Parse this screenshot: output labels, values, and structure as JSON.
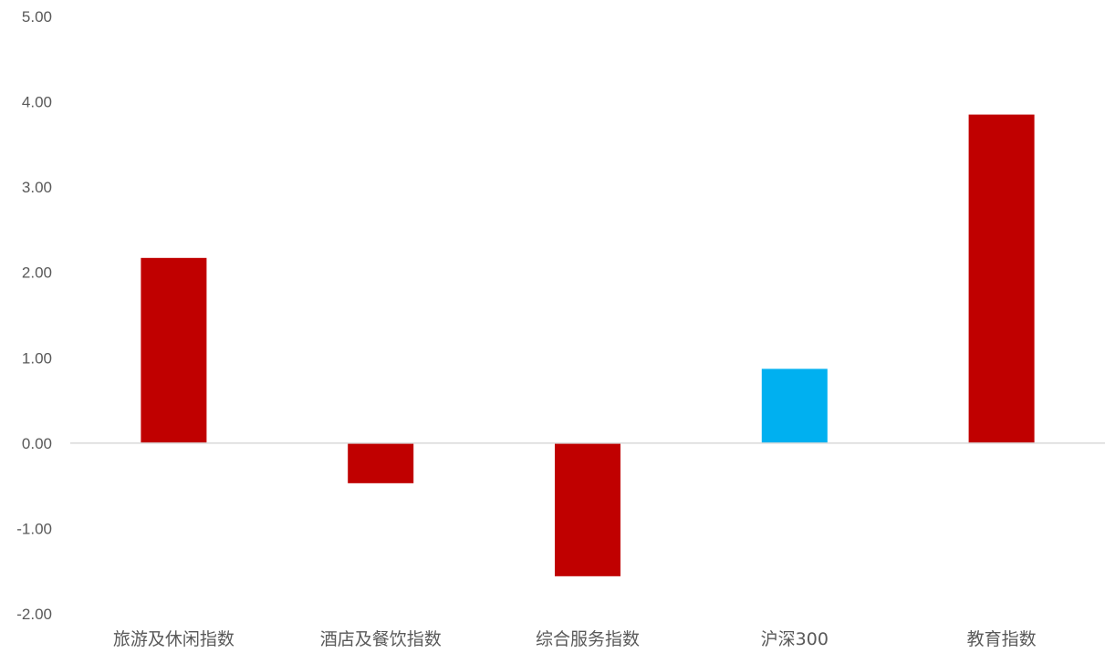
{
  "chart_data": {
    "type": "bar",
    "categories": [
      "旅游及休闲指数",
      "酒店及餐饮指数",
      "综合服务指数",
      "沪深300",
      "教育指数"
    ],
    "values": [
      2.17,
      -0.47,
      -1.56,
      0.87,
      3.85
    ],
    "bar_colors": [
      "#c00000",
      "#c00000",
      "#c00000",
      "#00b0f0",
      "#c00000"
    ],
    "title": "",
    "xlabel": "",
    "ylabel": "",
    "ylim": [
      -2.0,
      5.0
    ],
    "yticks": [
      5.0,
      4.0,
      3.0,
      2.0,
      1.0,
      0.0,
      -1.0,
      -2.0
    ],
    "ytick_labels": [
      "5.00",
      "4.00",
      "3.00",
      "2.00",
      "1.00",
      "0.00",
      "-1.00",
      "-2.00"
    ],
    "grid": false,
    "legend": "none"
  }
}
